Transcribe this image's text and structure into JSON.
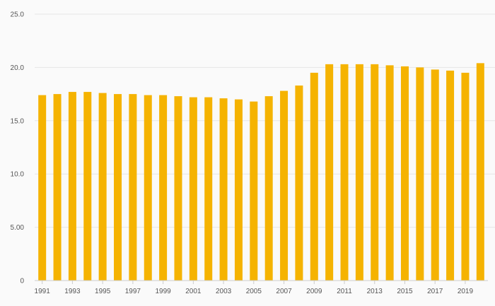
{
  "chart_data": {
    "type": "bar",
    "title": "",
    "xlabel": "",
    "ylabel": "",
    "color": "#f5b301",
    "grid": true,
    "ylim": [
      0,
      25
    ],
    "yticks": [
      "0",
      "5.00",
      "10.0",
      "15.0",
      "20.0",
      "25.0"
    ],
    "ytick_values": [
      0,
      5,
      10,
      15,
      20,
      25
    ],
    "categories": [
      "1991",
      "1992",
      "1993",
      "1994",
      "1995",
      "1996",
      "1997",
      "1998",
      "1999",
      "2000",
      "2001",
      "2002",
      "2003",
      "2004",
      "2005",
      "2006",
      "2007",
      "2008",
      "2009",
      "2010",
      "2011",
      "2012",
      "2013",
      "2014",
      "2015",
      "2016",
      "2017",
      "2018",
      "2019",
      "2020"
    ],
    "xtick_labels": [
      "1991",
      "1993",
      "1995",
      "1997",
      "1999",
      "2001",
      "2003",
      "2005",
      "2007",
      "2009",
      "2011",
      "2013",
      "2015",
      "2017",
      "2019"
    ],
    "values": [
      17.4,
      17.5,
      17.7,
      17.7,
      17.6,
      17.5,
      17.5,
      17.4,
      17.4,
      17.3,
      17.2,
      17.2,
      17.1,
      17.0,
      16.8,
      17.3,
      17.8,
      18.3,
      19.5,
      20.3,
      20.3,
      20.3,
      20.3,
      20.2,
      20.1,
      20.0,
      19.8,
      19.7,
      19.5,
      20.4
    ]
  }
}
